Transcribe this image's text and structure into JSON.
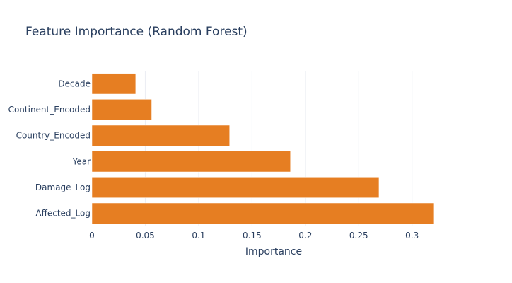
{
  "chart_data": {
    "type": "bar",
    "orientation": "horizontal",
    "title": "Feature Importance (Random Forest)",
    "xlabel": "Importance",
    "ylabel": "",
    "categories": [
      "Decade",
      "Continent_Encoded",
      "Country_Encoded",
      "Year",
      "Damage_Log",
      "Affected_Log"
    ],
    "values": [
      0.041,
      0.056,
      0.129,
      0.186,
      0.269,
      0.32
    ],
    "xlim": [
      0,
      0.33
    ],
    "xticks": [
      0,
      0.05,
      0.1,
      0.15,
      0.2,
      0.25,
      0.3
    ],
    "xtick_labels": [
      "0",
      "0.05",
      "0.1",
      "0.15",
      "0.2",
      "0.25",
      "0.3"
    ],
    "bar_color": "#e67e22",
    "grid": true,
    "legend": "none"
  }
}
